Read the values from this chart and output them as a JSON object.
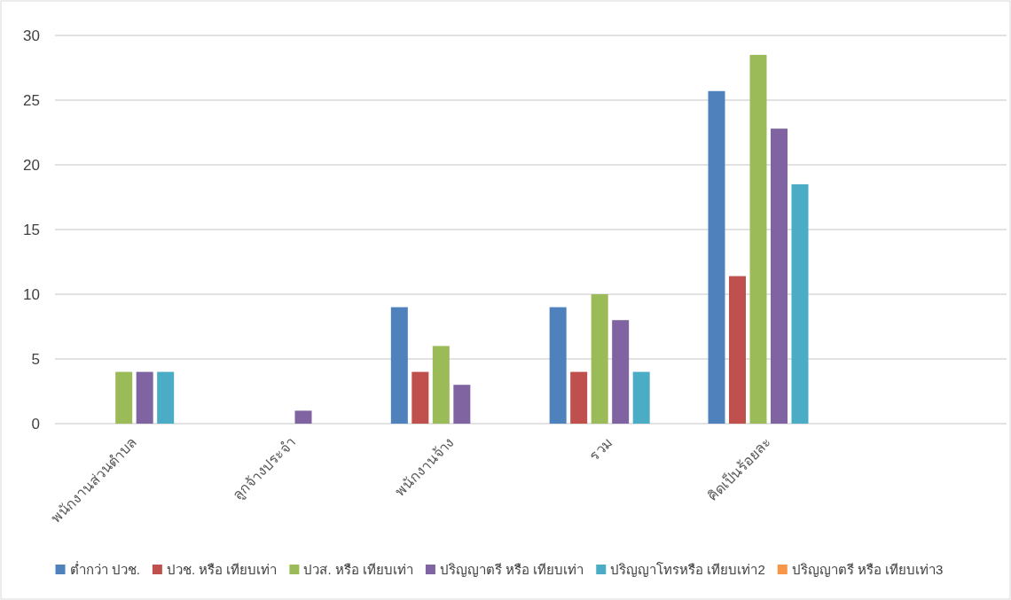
{
  "chart_data": {
    "type": "bar",
    "categories": [
      "พนักงานส่วนตำบล",
      "ลูกจ้างประจำ",
      "พนักงานจ้าง",
      "รวม",
      "คิดเป็นร้อยละ",
      null
    ],
    "series": [
      {
        "name": "ต่ำกว่า ปวช.",
        "color": "#4f81bd",
        "values": [
          null,
          null,
          9,
          9,
          25.7,
          null
        ]
      },
      {
        "name": "ปวช. หรือ เทียบเท่า",
        "color": "#c0504d",
        "values": [
          null,
          null,
          4,
          4,
          11.4,
          null
        ]
      },
      {
        "name": "ปวส. หรือ เทียบเท่า",
        "color": "#9bbb59",
        "values": [
          4,
          null,
          6,
          10,
          28.5,
          null
        ]
      },
      {
        "name": "ปริญญาตรี หรือ เทียบเท่า",
        "color": "#8064a2",
        "values": [
          4,
          1,
          3,
          8,
          22.8,
          null
        ]
      },
      {
        "name": "ปริญญาโทรหรือ เทียบเท่า2",
        "color": "#4bacc6",
        "values": [
          4,
          null,
          null,
          4,
          18.5,
          null
        ]
      },
      {
        "name": "ปริญญาตรี หรือ เทียบเท่า3",
        "color": "#f79646",
        "values": [
          null,
          null,
          null,
          null,
          null,
          null
        ]
      }
    ],
    "ylim": [
      0,
      30
    ],
    "yticks": [
      0,
      5,
      10,
      15,
      20,
      25,
      30
    ],
    "grid": "y",
    "legend": "bottom"
  }
}
